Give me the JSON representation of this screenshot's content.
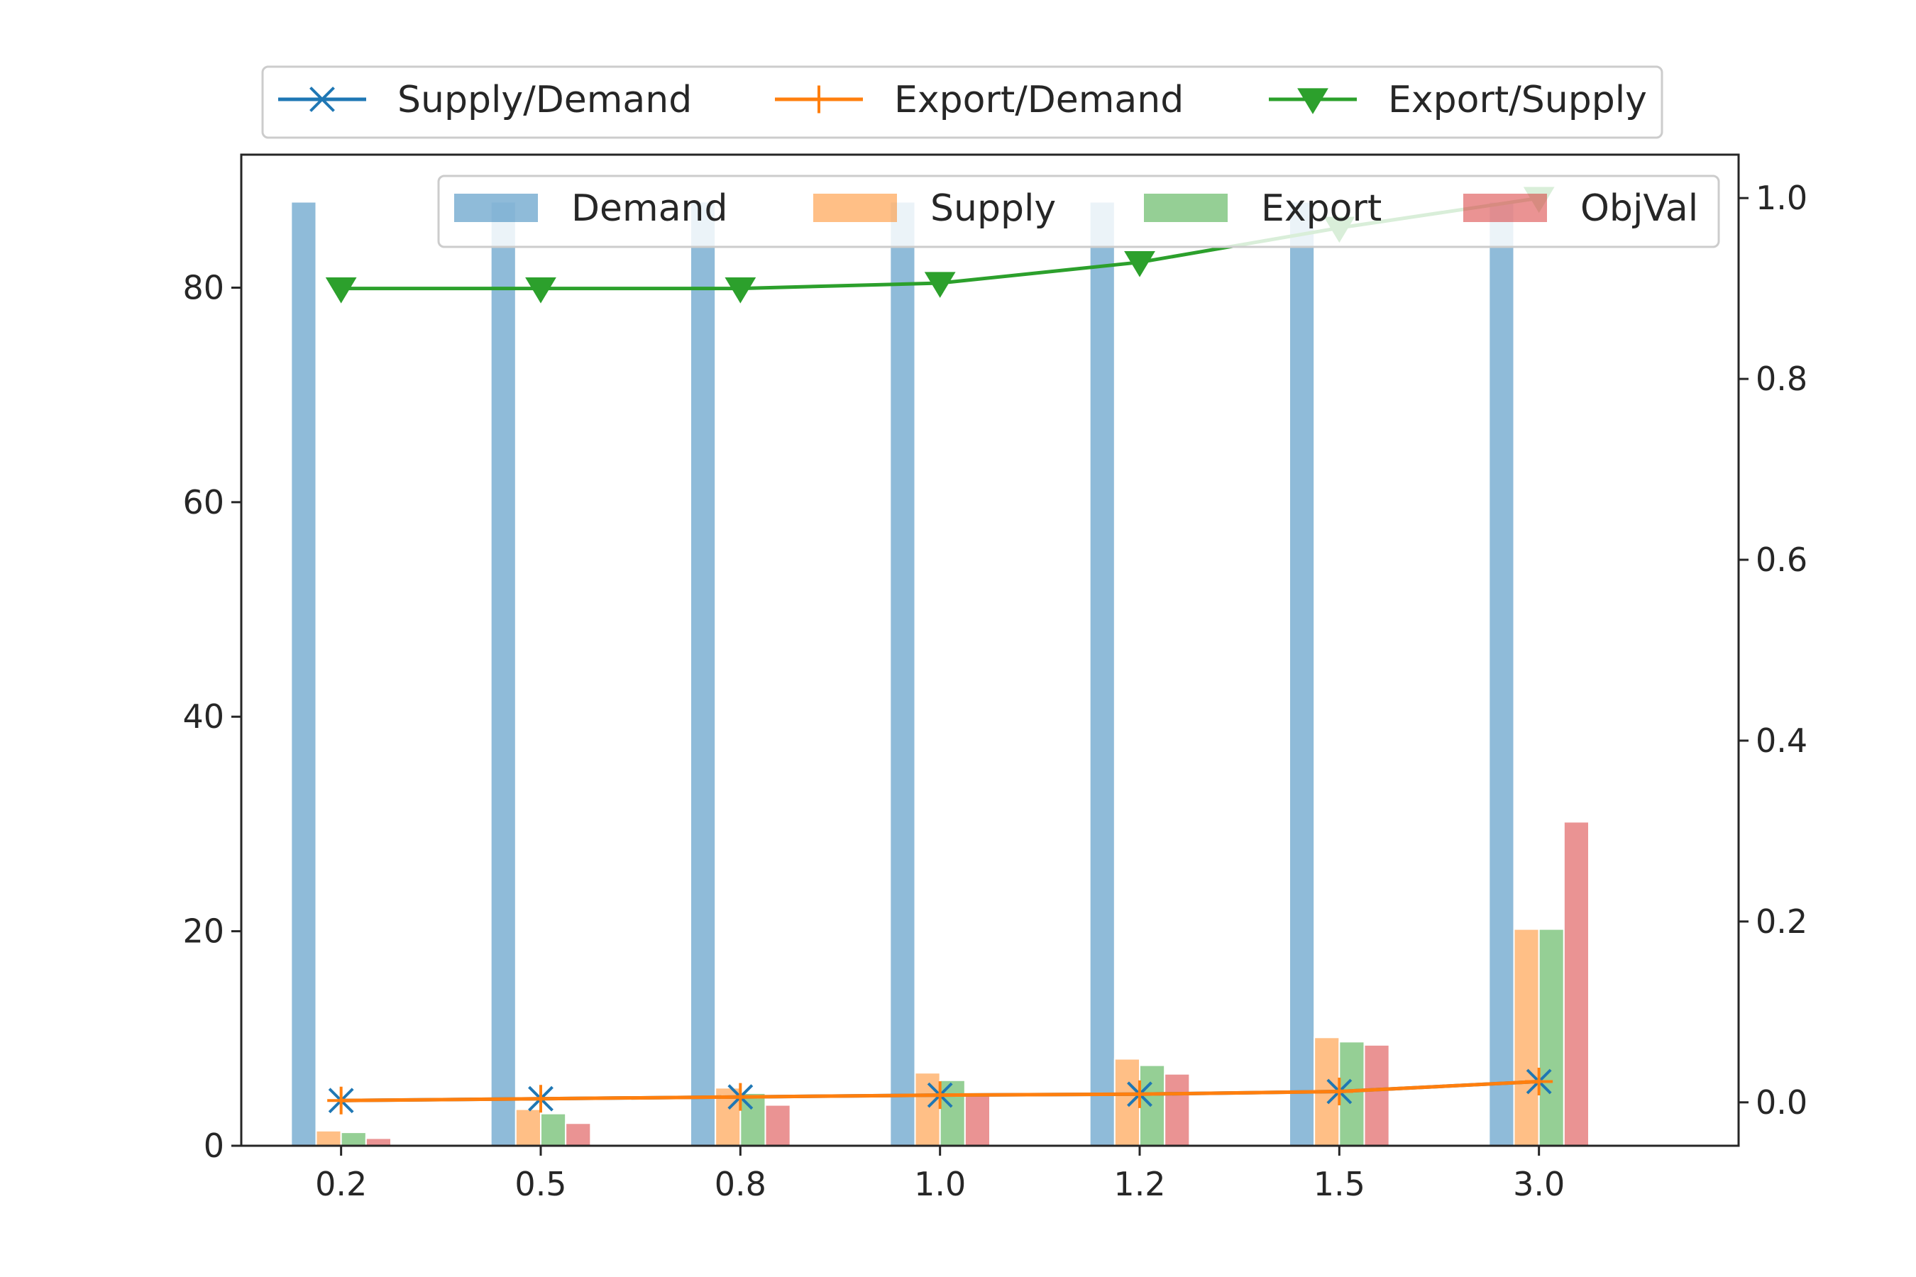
{
  "chart_data": {
    "type": "bar",
    "categories": [
      "0.2",
      "0.5",
      "0.8",
      "1.0",
      "1.2",
      "1.5",
      "3.0"
    ],
    "bar_series": [
      {
        "name": "Demand",
        "color": "#1f77b4",
        "values": [
          88,
          88,
          88,
          88,
          88,
          88,
          88
        ]
      },
      {
        "name": "Supply",
        "color": "#ff7f0e",
        "values": [
          1.4,
          3.4,
          5.4,
          6.8,
          8.1,
          10.1,
          20.2
        ]
      },
      {
        "name": "Export",
        "color": "#2ca02c",
        "values": [
          1.25,
          3.0,
          4.9,
          6.1,
          7.5,
          9.7,
          20.2
        ]
      },
      {
        "name": "ObjVal",
        "color": "#d62728",
        "values": [
          0.7,
          2.1,
          3.8,
          4.9,
          6.7,
          9.4,
          30.2
        ]
      }
    ],
    "line_series": [
      {
        "name": "Supply/Demand",
        "color": "#1f77b4",
        "marker": "x",
        "values": [
          0.002,
          0.004,
          0.006,
          0.008,
          0.009,
          0.012,
          0.023
        ]
      },
      {
        "name": "Export/Demand",
        "color": "#ff7f0e",
        "marker": "plus",
        "values": [
          0.002,
          0.004,
          0.006,
          0.008,
          0.009,
          0.012,
          0.023
        ]
      },
      {
        "name": "Export/Supply",
        "color": "#2ca02c",
        "marker": "triangle-down",
        "values": [
          0.9,
          0.9,
          0.9,
          0.906,
          0.929,
          0.967,
          1.0
        ]
      }
    ],
    "y_left": {
      "lim": [
        0,
        92.4
      ],
      "ticks": [
        0,
        20,
        40,
        60,
        80
      ]
    },
    "y_right": {
      "lim": [
        -0.048,
        1.048
      ],
      "ticks": [
        0.0,
        0.2,
        0.4,
        0.6,
        0.8,
        1.0
      ]
    },
    "grid": false,
    "legends": {
      "lines": "above-plot",
      "bars": "upper-right"
    }
  }
}
